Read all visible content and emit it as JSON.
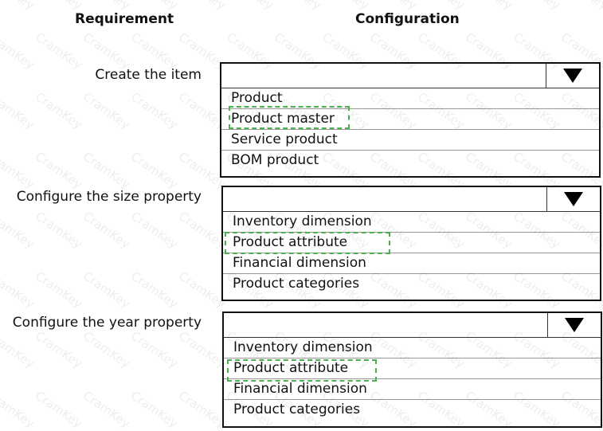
{
  "headers": {
    "requirement": "Requirement",
    "configuration": "Configuration"
  },
  "watermark": "CramKey",
  "rows": [
    {
      "label": "Create the item",
      "options": [
        "Product",
        "Product master",
        "Service product",
        "BOM product"
      ],
      "selected": "Product master"
    },
    {
      "label": "Configure the size property",
      "options": [
        "Inventory dimension",
        "Product attribute",
        "Financial dimension",
        "Product categories"
      ],
      "selected": "Product attribute"
    },
    {
      "label": "Configure the year property",
      "options": [
        "Inventory dimension",
        "Product attribute",
        "Financial dimension",
        "Product categories"
      ],
      "selected": "Product attribute"
    }
  ],
  "colors": {
    "selection": "#4caf50"
  }
}
